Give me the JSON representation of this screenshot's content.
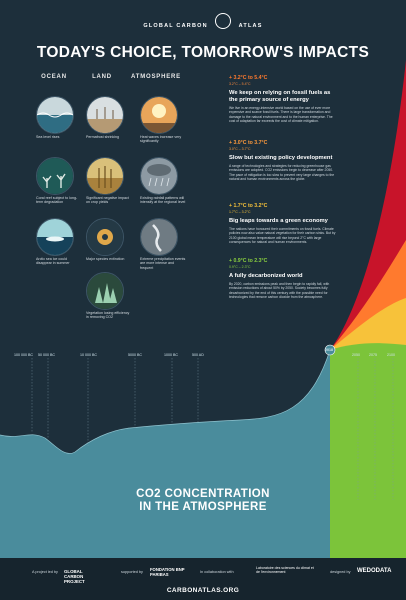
{
  "logo": {
    "line1": "GLOBAL CARBON",
    "line2": "ATLAS"
  },
  "title": "TODAY'S CHOICE, TOMORROW'S IMPACTS",
  "columns": [
    "OCEAN",
    "LAND",
    "ATMOSPHERE"
  ],
  "impacts": [
    {
      "caption": "Sea level rises",
      "icon": "wave-icon"
    },
    {
      "caption": "Permafrost shrinking",
      "icon": "permafrost-icon"
    },
    {
      "caption": "Heat waves increase very significantly",
      "icon": "sun-icon"
    },
    {
      "caption": "Coral reef subject to long-term degradation",
      "icon": "coral-icon"
    },
    {
      "caption": "Significant negative impact on crop yields",
      "icon": "wheat-icon"
    },
    {
      "caption": "Existing rainfall patterns will intensify at the regional level",
      "icon": "rain-icon"
    },
    {
      "caption": "Arctic sea ice could disappear in summer",
      "icon": "ice-icon"
    },
    {
      "caption": "Major species extinction",
      "icon": "species-icon"
    },
    {
      "caption": "Extreme precipitation events are more intense and frequent",
      "icon": "storm-icon"
    },
    {
      "caption": "Vegetation losing efficiency in removing CO2",
      "icon": "forest-icon"
    }
  ],
  "scenarios": [
    {
      "range": "+ 3.2°C to 5.4°C",
      "sub": "3.2°C – 5.4°C",
      "title": "We keep on relying on fossil fuels as the primary source of energy",
      "text": "We live in an energy-intensive world based on the use of ever more expensive and scarce fossil fuels. There is large transformation and damage to the natural environment and to the human enterprise. The cost of adaptation far exceeds the cost of climate mitigation.",
      "color": "#ff7a2e"
    },
    {
      "range": "+ 3.0°C to 3.7°C",
      "sub": "3.0°C – 3.7°C",
      "title": "Slow but existing policy development",
      "text": "A range of technologies and strategies for reducing greenhouse gas emissions are adopted. CO2 emissions begin to decrease after 2050. The pace of mitigation is too slow to prevent very large changes to the natural and human environments across the globe.",
      "color": "#ff9a3c"
    },
    {
      "range": "+ 1.7°C to 3.2°C",
      "sub": "1.7°C – 3.2°C",
      "title": "Big leaps towards a green economy",
      "text": "The nations have honoured their commitments on fossil fuels. Climate policies now also value natural vegetation for their carbon sinks. But by 2100 global mean temperature will rise beyond 2°C with large consequences for natural and human environments.",
      "color": "#f7c23a"
    },
    {
      "range": "+ 0.9°C to 2.3°C",
      "sub": "0.9°C – 2.3°C",
      "title": "A fully decarbonized world",
      "text": "By 2020, carbon emissions peak and then begin to rapidly fall, with emission reductions of about 50% by 2050. Society becomes fully decarbonized by the end of this century with the possible need for technologies that remove carbon dioxide from the atmosphere.",
      "color": "#8bd13f"
    }
  ],
  "timeline": {
    "labels": [
      "100 000 BC",
      "50 000 BC",
      "10 000 BC",
      "5000 BC",
      "1000 BC",
      "500 AD",
      "2018",
      "2050",
      "2075",
      "2100"
    ]
  },
  "co2_title": {
    "line1": "CO2 CONCENTRATION",
    "line2": "IN THE ATMOSPHERE"
  },
  "footer": {
    "project_by": "A project led by",
    "gcp": "GLOBAL CARBON PROJECT",
    "supported_by": "supported by",
    "foundation": "FONDATION BNP PARIBAS",
    "collab": "In collaboration with",
    "lsce": "Laboratoire des sciences du climat et de l'environnement",
    "designed_by": "designed by",
    "wedodata": "WEDODATA",
    "site": "CARBONATLAS.ORG"
  },
  "colors": {
    "background": "#1d2f3b",
    "teal": "#4a8c9c",
    "green": "#7cc43a",
    "yellow": "#f7c23a",
    "orange": "#ff7a2e",
    "red": "#c8142a"
  }
}
